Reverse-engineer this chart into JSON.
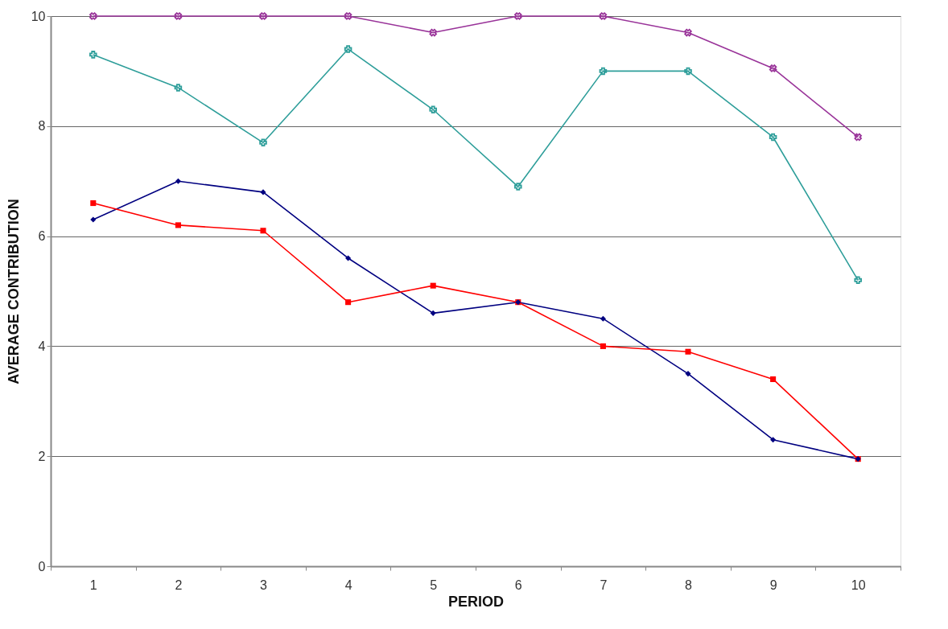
{
  "chart_data": {
    "type": "line",
    "xlabel": "PERIOD",
    "ylabel": "AVERAGE CONTRIBUTION",
    "categories": [
      "1",
      "2",
      "3",
      "4",
      "5",
      "6",
      "7",
      "8",
      "9",
      "10"
    ],
    "series": [
      {
        "color": "#000080",
        "marker": "diamond",
        "values": [
          6.3,
          7.0,
          6.8,
          5.6,
          4.6,
          4.8,
          4.5,
          3.5,
          2.3,
          1.95
        ]
      },
      {
        "color": "#ff0000",
        "marker": "square",
        "values": [
          6.6,
          6.2,
          6.1,
          4.8,
          5.1,
          4.8,
          4.0,
          3.9,
          3.4,
          1.95
        ]
      },
      {
        "color": "#2e9e9a",
        "marker": "cross",
        "values": [
          9.3,
          8.7,
          7.7,
          9.4,
          8.3,
          6.9,
          9.0,
          9.0,
          7.8,
          5.2
        ]
      },
      {
        "color": "#993399",
        "marker": "cross",
        "values": [
          10,
          10,
          10,
          10,
          9.7,
          10,
          10,
          9.7,
          9.05,
          7.8
        ]
      }
    ],
    "ylim": [
      0,
      10
    ],
    "yticks": [
      0,
      2,
      4,
      6,
      8,
      10
    ],
    "grid": "y",
    "line_style": "solid"
  }
}
